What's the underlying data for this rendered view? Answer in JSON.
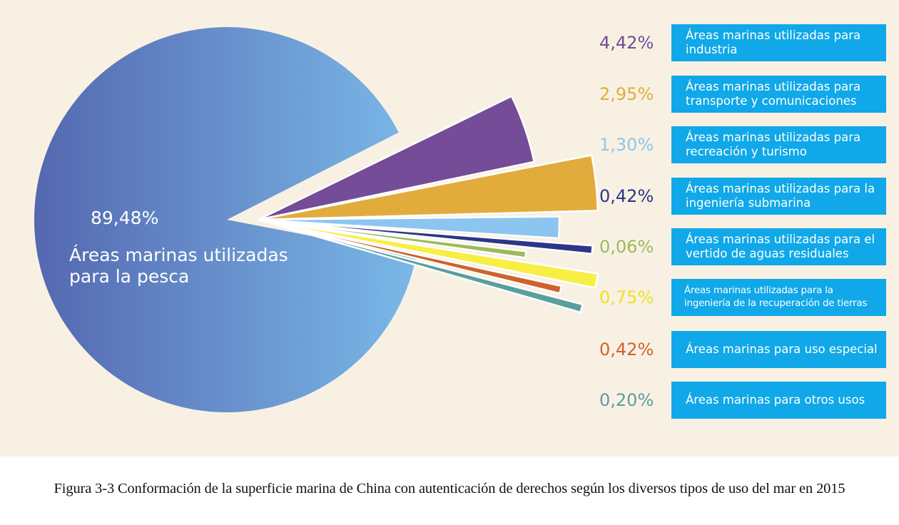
{
  "chart_data": {
    "type": "pie",
    "title": "",
    "exploded_slices": true,
    "slices": [
      {
        "value_label": "89,48%",
        "value": 89.48,
        "label": "Áreas marinas utilizadas para la pesca",
        "color": "#6c9fd8"
      },
      {
        "value_label": "4,42%",
        "value": 4.42,
        "label": "Áreas marinas utilizadas para industria",
        "color": "#744c98"
      },
      {
        "value_label": "2,95%",
        "value": 2.95,
        "label": "Áreas marinas utilizadas para transporte y comunicaciones",
        "color": "#e2ac3c"
      },
      {
        "value_label": "1,30%",
        "value": 1.3,
        "label": "Áreas marinas utilizadas para recreación y turismo",
        "color": "#8cc6f0"
      },
      {
        "value_label": "0,42%",
        "value": 0.42,
        "label": "Áreas marinas utilizadas para la ingeniería submarina",
        "color": "#2c3688"
      },
      {
        "value_label": "0,06%",
        "value": 0.06,
        "label": "Áreas marinas utilizadas para el vertido de aguas residuales",
        "color": "#9abc5c"
      },
      {
        "value_label": "0,75%",
        "value": 0.75,
        "label": "Áreas marinas utilizadas para la ingeniería de la recuperación de tierras",
        "color": "#f8ee44"
      },
      {
        "value_label": "0,42%",
        "value": 0.42,
        "label": "Áreas marinas para uso especial",
        "color": "#d0622c"
      },
      {
        "value_label": "0,20%",
        "value": 0.2,
        "label": "Áreas marinas para otros usos",
        "color": "#5b9e9e"
      }
    ]
  },
  "main_slice": {
    "value": "89,48%",
    "label": "Áreas marinas utilizadas para la pesca"
  },
  "legend": [
    {
      "pct": "4,42%",
      "label": "Áreas marinas utilizadas para industria",
      "pct_color": "#744c98"
    },
    {
      "pct": "2,95%",
      "label": "Áreas marinas utilizadas para transporte y comunicaciones",
      "pct_color": "#e2ac3c"
    },
    {
      "pct": "1,30%",
      "label": "Áreas marinas utilizadas para recreación y turismo",
      "pct_color": "#8cc6f0"
    },
    {
      "pct": "0,42%",
      "label": "Áreas marinas utilizadas para la ingeniería submarina",
      "pct_color": "#2c3688"
    },
    {
      "pct": "0,06%",
      "label": "Áreas marinas utilizadas para el vertido de aguas residuales",
      "pct_color": "#9abc5c"
    },
    {
      "pct": "0,75%",
      "label": "Áreas marinas utilizadas para la ingeniería de la recuperación de tierras",
      "pct_color": "#f0e020"
    },
    {
      "pct": "0,42%",
      "label": "Áreas marinas para uso especial",
      "pct_color": "#d0622c"
    },
    {
      "pct": "0,20%",
      "label": "Áreas marinas para otros usos",
      "pct_color": "#5b9e9e"
    }
  ],
  "caption": "Figura 3-3 Conformación de la superficie marina de China con autenticación de derechos según los diversos tipos de uso del mar en 2015",
  "colors": {
    "background": "#f8f1e3",
    "legend_box": "#10a8e8",
    "main_slice_gradient_start": "#5468b0",
    "main_slice_gradient_end": "#7ab8e8"
  }
}
